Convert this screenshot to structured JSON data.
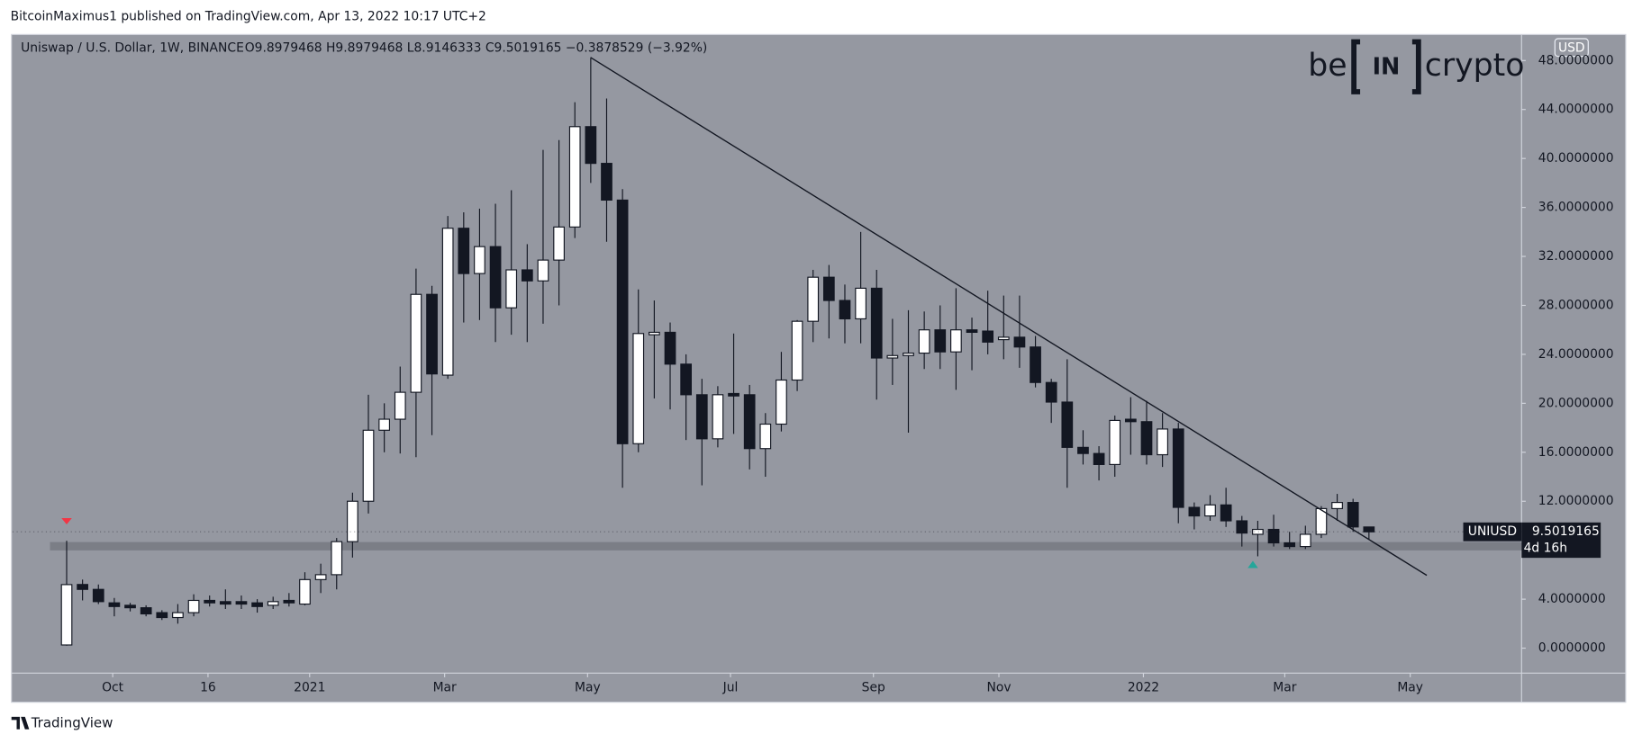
{
  "publisher": "BitcoinMaximus1 published on TradingView.com, Apr 13, 2022 10:17 UTC+2",
  "footer": "TradingView",
  "logo": {
    "left": "be",
    "middle": "IN",
    "right": "crypto"
  },
  "chart_data": {
    "type": "candlestick",
    "title": "Uniswap / U.S. Dollar, 1W, BINANCE",
    "ohlc_legend": "O9.8979468 H9.8979468 L8.9146333 C9.5019165 −0.3878529 (−3.92%)",
    "currency": "USD",
    "symbol": "UNIUSD",
    "last_price": {
      "value": 9.5019165,
      "label": "9.5019165"
    },
    "countdown": "4d 16h",
    "up_color": "#ffffff",
    "down_color": "#131722",
    "ohlc": [
      [
        0.26,
        8.77,
        0.2,
        5.19
      ],
      [
        5.2,
        5.6,
        3.9,
        4.8
      ],
      [
        4.8,
        5.2,
        3.6,
        3.8
      ],
      [
        3.7,
        4.1,
        2.6,
        3.4
      ],
      [
        3.5,
        3.7,
        3.0,
        3.3
      ],
      [
        3.3,
        3.5,
        2.6,
        2.8
      ],
      [
        2.9,
        3.1,
        2.3,
        2.5
      ],
      [
        2.5,
        3.6,
        2.0,
        2.9
      ],
      [
        2.9,
        4.4,
        2.6,
        3.9
      ],
      [
        3.9,
        4.3,
        3.4,
        3.7
      ],
      [
        3.8,
        4.8,
        3.2,
        3.6
      ],
      [
        3.8,
        4.3,
        3.2,
        3.6
      ],
      [
        3.7,
        4.0,
        2.9,
        3.4
      ],
      [
        3.5,
        4.2,
        3.2,
        3.8
      ],
      [
        3.9,
        4.5,
        3.4,
        3.7
      ],
      [
        3.6,
        6.2,
        3.5,
        5.6
      ],
      [
        5.6,
        6.9,
        4.5,
        6.0
      ],
      [
        6.0,
        9.0,
        4.8,
        8.7
      ],
      [
        8.7,
        12.7,
        7.4,
        12.0
      ],
      [
        12.0,
        20.7,
        11.0,
        17.8
      ],
      [
        17.8,
        20.0,
        16.0,
        18.7
      ],
      [
        18.7,
        23.0,
        15.9,
        20.9
      ],
      [
        20.9,
        31.0,
        15.6,
        28.9
      ],
      [
        28.9,
        29.6,
        17.4,
        22.4
      ],
      [
        22.3,
        35.3,
        22.0,
        34.3
      ],
      [
        34.3,
        35.6,
        26.6,
        30.6
      ],
      [
        30.6,
        35.9,
        26.8,
        32.8
      ],
      [
        32.8,
        36.3,
        25.0,
        27.8
      ],
      [
        27.8,
        37.4,
        25.6,
        30.9
      ],
      [
        30.9,
        33.0,
        25.0,
        30.0
      ],
      [
        30.0,
        40.7,
        26.5,
        31.7
      ],
      [
        31.7,
        41.5,
        28.0,
        34.4
      ],
      [
        34.4,
        44.6,
        33.5,
        42.6
      ],
      [
        42.6,
        48.2,
        38.0,
        39.6
      ],
      [
        39.6,
        44.9,
        33.2,
        36.6
      ],
      [
        36.6,
        37.5,
        13.1,
        16.7
      ],
      [
        16.7,
        29.3,
        16.0,
        25.7
      ],
      [
        25.6,
        28.4,
        20.4,
        25.8
      ],
      [
        25.8,
        26.6,
        19.5,
        23.2
      ],
      [
        23.2,
        24.0,
        17.0,
        20.7
      ],
      [
        20.7,
        22.0,
        13.3,
        17.1
      ],
      [
        17.1,
        21.4,
        16.4,
        20.7
      ],
      [
        20.8,
        25.7,
        17.5,
        20.6
      ],
      [
        20.7,
        21.5,
        14.6,
        16.3
      ],
      [
        16.3,
        19.2,
        14.0,
        18.3
      ],
      [
        18.3,
        24.2,
        17.7,
        21.9
      ],
      [
        21.9,
        26.8,
        21.0,
        26.7
      ],
      [
        26.7,
        30.9,
        25.0,
        30.3
      ],
      [
        30.3,
        31.3,
        25.3,
        28.4
      ],
      [
        28.4,
        29.7,
        24.9,
        26.9
      ],
      [
        26.9,
        34.0,
        24.9,
        29.4
      ],
      [
        29.4,
        30.9,
        20.3,
        23.7
      ],
      [
        23.7,
        26.9,
        21.5,
        23.9
      ],
      [
        23.9,
        27.6,
        17.6,
        24.1
      ],
      [
        24.1,
        27.5,
        22.8,
        26.0
      ],
      [
        26.0,
        28.0,
        22.8,
        24.2
      ],
      [
        24.2,
        29.4,
        21.1,
        26.0
      ],
      [
        26.0,
        27.0,
        22.7,
        25.8
      ],
      [
        25.9,
        29.2,
        24.0,
        25.0
      ],
      [
        25.2,
        28.8,
        23.6,
        25.4
      ],
      [
        25.4,
        28.8,
        22.9,
        24.6
      ],
      [
        24.6,
        25.5,
        21.3,
        21.7
      ],
      [
        21.7,
        22.0,
        18.4,
        20.1
      ],
      [
        20.1,
        23.6,
        13.1,
        16.4
      ],
      [
        16.4,
        17.8,
        15.0,
        15.9
      ],
      [
        15.9,
        16.5,
        13.7,
        15.0
      ],
      [
        15.0,
        19.0,
        14.0,
        18.6
      ],
      [
        18.7,
        20.5,
        15.8,
        18.5
      ],
      [
        18.5,
        20.2,
        15.0,
        15.8
      ],
      [
        15.8,
        19.2,
        14.8,
        17.9
      ],
      [
        17.9,
        18.4,
        10.2,
        11.5
      ],
      [
        11.5,
        11.9,
        9.7,
        10.8
      ],
      [
        10.8,
        12.5,
        10.4,
        11.7
      ],
      [
        11.7,
        13.1,
        9.9,
        10.4
      ],
      [
        10.4,
        10.8,
        8.3,
        9.4
      ],
      [
        9.3,
        10.4,
        7.5,
        9.7
      ],
      [
        9.7,
        10.9,
        8.3,
        8.6
      ],
      [
        8.6,
        9.5,
        8.1,
        8.3
      ],
      [
        8.3,
        10.0,
        8.1,
        9.3
      ],
      [
        9.3,
        11.6,
        9.0,
        11.4
      ],
      [
        11.4,
        12.6,
        10.4,
        11.9
      ],
      [
        11.9,
        12.2,
        9.5,
        9.9
      ],
      [
        9.8979468,
        9.8979468,
        8.9146333,
        9.5019165
      ]
    ],
    "xlim": [
      -3.41,
      91.61
    ],
    "xticks": [
      {
        "value": 2.9,
        "label": "Oct"
      },
      {
        "value": 8.9,
        "label": "16"
      },
      {
        "value": 15.3,
        "label": "2021"
      },
      {
        "value": 23.8,
        "label": "Mar"
      },
      {
        "value": 32.8,
        "label": "May"
      },
      {
        "value": 41.8,
        "label": "Jul"
      },
      {
        "value": 50.8,
        "label": "Sep"
      },
      {
        "value": 58.7,
        "label": "Nov"
      },
      {
        "value": 67.8,
        "label": "2022"
      },
      {
        "value": 76.7,
        "label": "Mar"
      },
      {
        "value": 84.6,
        "label": "May"
      }
    ],
    "ylim": [
      -2.04,
      50.04
    ],
    "yticks": [
      {
        "value": 0,
        "label": "0.0000000"
      },
      {
        "value": 4,
        "label": "4.0000000"
      },
      {
        "value": 12,
        "label": "12.0000000"
      },
      {
        "value": 16,
        "label": "16.0000000"
      },
      {
        "value": 20,
        "label": "20.0000000"
      },
      {
        "value": 24,
        "label": "24.0000000"
      },
      {
        "value": 28,
        "label": "28.0000000"
      },
      {
        "value": 32,
        "label": "32.0000000"
      },
      {
        "value": 36,
        "label": "36.0000000"
      },
      {
        "value": 40,
        "label": "40.0000000"
      },
      {
        "value": 44,
        "label": "44.0000000"
      },
      {
        "value": 48,
        "label": "48.0000000"
      }
    ]
  }
}
